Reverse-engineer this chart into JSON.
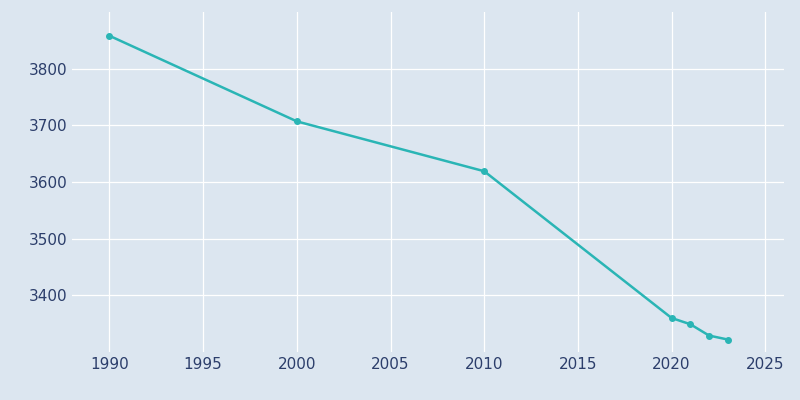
{
  "years": [
    1990,
    2000,
    2010,
    2020,
    2021,
    2022,
    2023
  ],
  "population": [
    3858,
    3707,
    3619,
    3360,
    3349,
    3329,
    3322
  ],
  "line_color": "#2ab5b5",
  "marker_color": "#2ab5b5",
  "fig_bg_color": "#dce6f0",
  "plot_bg_color": "#dce6f0",
  "grid_color": "#ffffff",
  "tick_color": "#2c3e6b",
  "xlim": [
    1988,
    2026
  ],
  "ylim": [
    3300,
    3900
  ],
  "xticks": [
    1990,
    1995,
    2000,
    2005,
    2010,
    2015,
    2020,
    2025
  ],
  "yticks": [
    3400,
    3500,
    3600,
    3700,
    3800
  ]
}
